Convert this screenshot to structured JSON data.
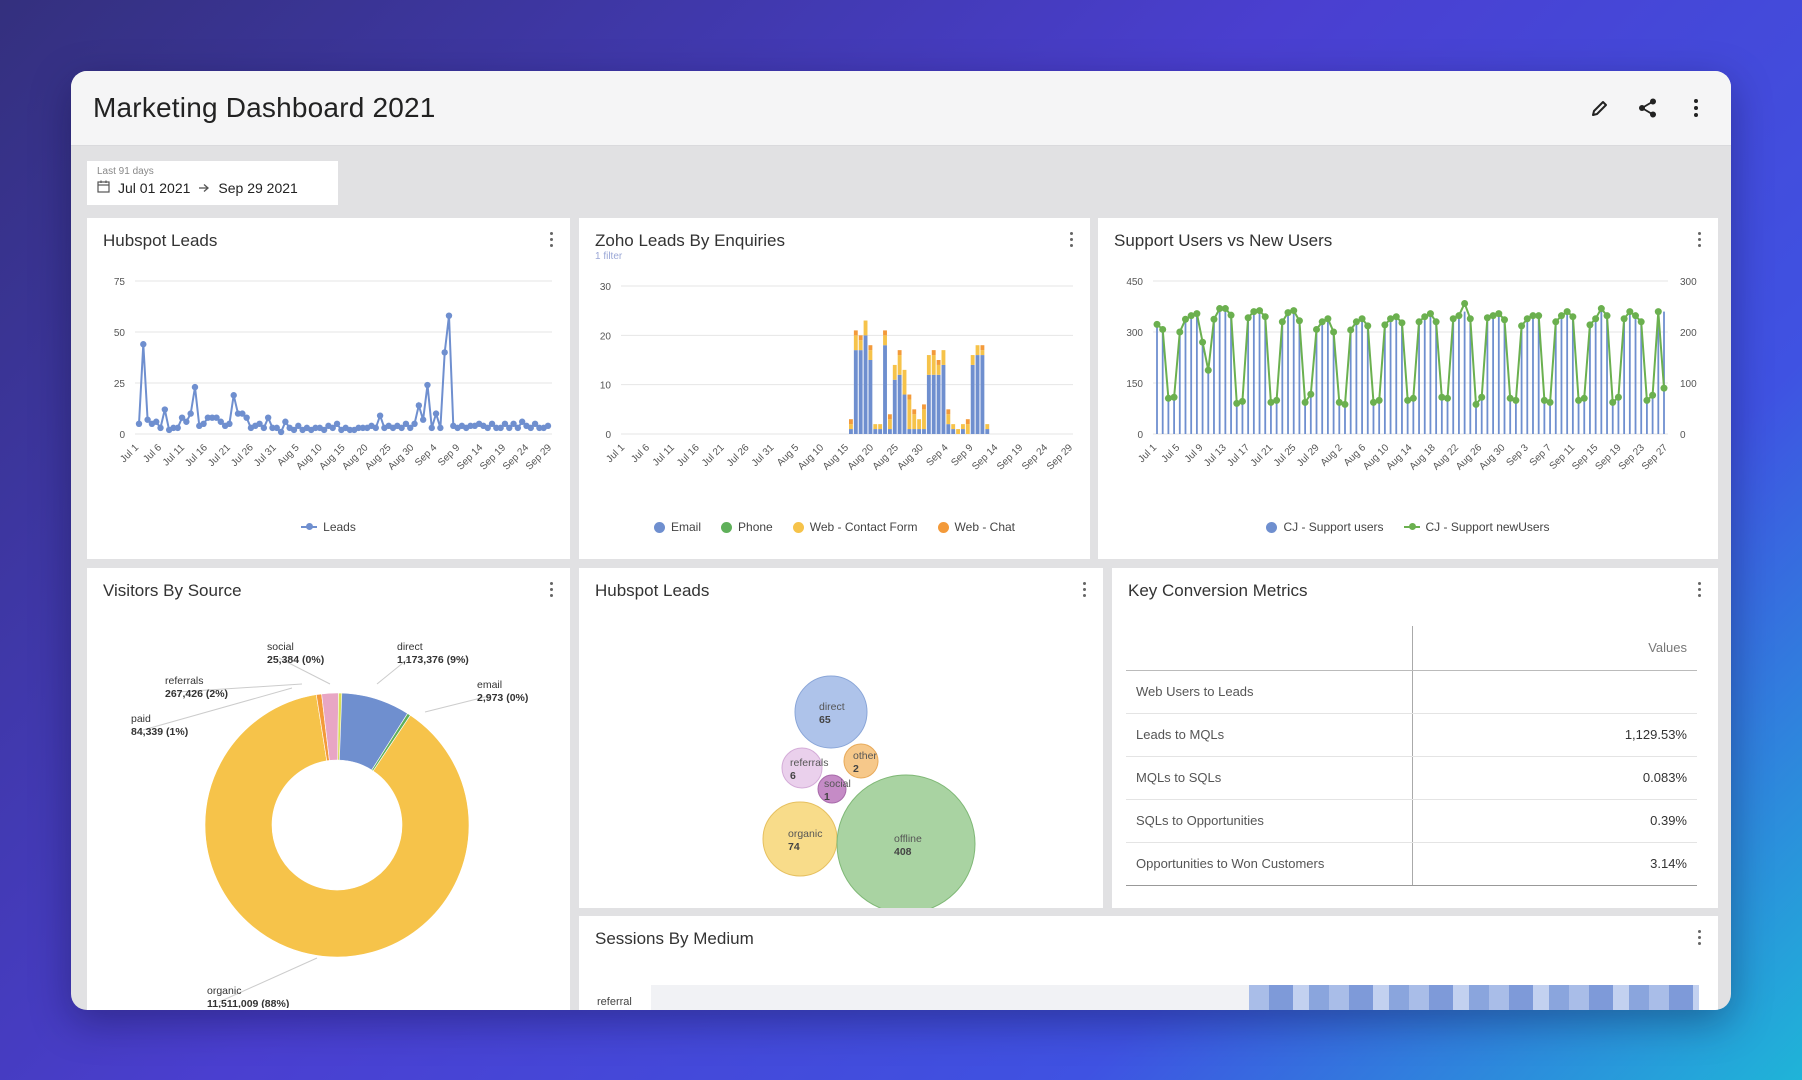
{
  "header": {
    "title": "Marketing Dashboard 2021",
    "icons": [
      "pencil-icon",
      "share-icon",
      "more-vertical-icon"
    ]
  },
  "date_filter": {
    "caption": "Last 91 days",
    "start": "Jul 01 2021",
    "end": "Sep 29 2021"
  },
  "hubspot_leads_line": {
    "title": "Hubspot Leads",
    "legend": "Leads",
    "chart_data": {
      "type": "line",
      "title": "Hubspot Leads",
      "yticks": [
        "0",
        "25",
        "50",
        "75"
      ],
      "ylim": [
        0,
        75
      ],
      "xticks": [
        "Jul 1",
        "Jul 6",
        "Jul 11",
        "Jul 16",
        "Jul 21",
        "Jul 26",
        "Jul 31",
        "Aug 5",
        "Aug 10",
        "Aug 15",
        "Aug 20",
        "Aug 25",
        "Aug 30",
        "Sep 4",
        "Sep 9",
        "Sep 14",
        "Sep 19",
        "Sep 24",
        "Sep 29"
      ],
      "series": [
        {
          "name": "Leads",
          "color": "#6f8fcf",
          "values": [
            5,
            44,
            7,
            5,
            6,
            3,
            12,
            2,
            3,
            3,
            8,
            6,
            10,
            23,
            4,
            5,
            8,
            8,
            8,
            6,
            4,
            5,
            19,
            10,
            10,
            8,
            3,
            4,
            5,
            3,
            8,
            3,
            3,
            1,
            6,
            3,
            2,
            4,
            2,
            3,
            2,
            3,
            3,
            2,
            4,
            3,
            5,
            2,
            3,
            2,
            2,
            3,
            3,
            3,
            4,
            3,
            9,
            3,
            4,
            3,
            4,
            3,
            5,
            3,
            5,
            14,
            7,
            24,
            3,
            10,
            3,
            40,
            58,
            4,
            3,
            4,
            3,
            4,
            4,
            5,
            4,
            3,
            5,
            3,
            3,
            5,
            3,
            5,
            3,
            6,
            4,
            3,
            5,
            3,
            3,
            4
          ]
        }
      ]
    }
  },
  "zoho_leads": {
    "title": "Zoho Leads By Enquiries",
    "subtitle": "1 filter",
    "legend": [
      "Email",
      "Phone",
      "Web - Contact Form",
      "Web - Chat"
    ],
    "chart_data": {
      "type": "bar",
      "title": "Zoho Leads By Enquiries",
      "yticks": [
        "0",
        "10",
        "20",
        "30"
      ],
      "ylim": [
        0,
        30
      ],
      "xticks": [
        "Jul 1",
        "Jul 6",
        "Jul 11",
        "Jul 16",
        "Jul 21",
        "Jul 26",
        "Jul 31",
        "Aug 5",
        "Aug 10",
        "Aug 15",
        "Aug 20",
        "Aug 25",
        "Aug 30",
        "Sep 4",
        "Sep 9",
        "Sep 14",
        "Sep 19",
        "Sep 24",
        "Sep 29"
      ],
      "colors": {
        "Email": "#6f8fcf",
        "Phone": "#5fb05a",
        "Web - Contact Form": "#f6c34a",
        "Web - Chat": "#f39a3a"
      },
      "series": [
        {
          "name": "Email",
          "values": [
            0,
            0,
            0,
            0,
            0,
            0,
            0,
            0,
            0,
            0,
            0,
            0,
            0,
            0,
            0,
            0,
            0,
            0,
            0,
            0,
            0,
            0,
            0,
            0,
            0,
            0,
            0,
            0,
            0,
            0,
            0,
            0,
            0,
            0,
            0,
            0,
            0,
            0,
            0,
            0,
            0,
            0,
            0,
            0,
            0,
            0,
            1,
            17,
            17,
            20,
            15,
            1,
            1,
            18,
            1,
            11,
            12,
            8,
            1,
            1,
            1,
            1,
            12,
            12,
            12,
            14,
            2,
            1,
            0,
            1,
            0,
            14,
            16,
            16,
            1,
            0,
            0,
            0,
            0,
            0,
            0,
            0,
            0,
            0,
            0,
            0,
            0,
            0,
            0,
            0,
            0,
            0
          ]
        },
        {
          "name": "Phone",
          "values": [
            0,
            0,
            0,
            0,
            0,
            0,
            0,
            0,
            0,
            0,
            0,
            0,
            0,
            0,
            0,
            0,
            0,
            0,
            0,
            0,
            0,
            0,
            0,
            0,
            0,
            0,
            0,
            0,
            0,
            0,
            0,
            0,
            0,
            0,
            0,
            0,
            0,
            0,
            0,
            0,
            0,
            0,
            0,
            0,
            0,
            0,
            0,
            0,
            0,
            0,
            0,
            0,
            0,
            0,
            0,
            0,
            0,
            0,
            0,
            0,
            0,
            0,
            0,
            0,
            0,
            0,
            0,
            0,
            0,
            0,
            0,
            0,
            0,
            0,
            0,
            0,
            0,
            0,
            0,
            0,
            0,
            0,
            0,
            0,
            0,
            0,
            0,
            0,
            0,
            0,
            0,
            0
          ]
        },
        {
          "name": "Web - Contact Form",
          "values": [
            0,
            0,
            0,
            0,
            0,
            0,
            0,
            0,
            0,
            0,
            0,
            0,
            0,
            0,
            0,
            0,
            0,
            0,
            0,
            0,
            0,
            0,
            0,
            0,
            0,
            0,
            0,
            0,
            0,
            0,
            0,
            0,
            0,
            0,
            0,
            0,
            0,
            0,
            0,
            0,
            0,
            0,
            0,
            0,
            0,
            0,
            1,
            3,
            2,
            3,
            2,
            1,
            1,
            2,
            2,
            3,
            4,
            5,
            6,
            3,
            2,
            4,
            4,
            4,
            2,
            3,
            2,
            1,
            1,
            1,
            2,
            2,
            2,
            1,
            1,
            0,
            0,
            0,
            0,
            0,
            0,
            0,
            0,
            0,
            0,
            0,
            0,
            0,
            0,
            0,
            0,
            0
          ]
        },
        {
          "name": "Web - Chat",
          "values": [
            0,
            0,
            0,
            0,
            0,
            0,
            0,
            0,
            0,
            0,
            0,
            0,
            0,
            0,
            0,
            0,
            0,
            0,
            0,
            0,
            0,
            0,
            0,
            0,
            0,
            0,
            0,
            0,
            0,
            0,
            0,
            0,
            0,
            0,
            0,
            0,
            0,
            0,
            0,
            0,
            0,
            0,
            0,
            0,
            0,
            0,
            1,
            1,
            1,
            0,
            1,
            0,
            0,
            1,
            1,
            0,
            1,
            0,
            1,
            1,
            0,
            1,
            0,
            1,
            1,
            0,
            1,
            0,
            0,
            0,
            1,
            0,
            0,
            1,
            0,
            0,
            0,
            0,
            0,
            0,
            0,
            0,
            0,
            0,
            0,
            0,
            0,
            0,
            0,
            0,
            0,
            0
          ]
        }
      ]
    }
  },
  "support_users": {
    "title": "Support Users vs New Users",
    "legend": [
      "CJ - Support users",
      "CJ - Support newUsers"
    ],
    "chart_data": {
      "type": "bar",
      "title": "Support Users vs New Users",
      "yticks_left": [
        "0",
        "150",
        "300",
        "450"
      ],
      "yticks_right": [
        "0",
        "100",
        "200",
        "300"
      ],
      "ylim_left": [
        0,
        450
      ],
      "ylim_right": [
        0,
        300
      ],
      "xticks": [
        "Jul 1",
        "Jul 5",
        "Jul 9",
        "Jul 13",
        "Jul 17",
        "Jul 21",
        "Jul 25",
        "Jul 29",
        "Aug 2",
        "Aug 6",
        "Aug 10",
        "Aug 14",
        "Aug 18",
        "Aug 22",
        "Aug 26",
        "Aug 30",
        "Sep 3",
        "Sep 7",
        "Sep 11",
        "Sep 15",
        "Sep 19",
        "Sep 23",
        "Sep 27"
      ],
      "series": [
        {
          "name": "CJ - Support users",
          "type": "bar",
          "axis": "left",
          "color": "#6f8fcf",
          "values": [
            320,
            305,
            100,
            105,
            300,
            340,
            350,
            360,
            270,
            190,
            340,
            370,
            365,
            350,
            90,
            100,
            340,
            365,
            365,
            350,
            95,
            100,
            330,
            350,
            360,
            330,
            95,
            120,
            310,
            330,
            340,
            300,
            95,
            90,
            310,
            330,
            340,
            320,
            95,
            100,
            320,
            340,
            345,
            330,
            100,
            105,
            330,
            345,
            355,
            330,
            110,
            105,
            340,
            350,
            360,
            340,
            90,
            110,
            340,
            350,
            355,
            340,
            105,
            100,
            320,
            340,
            350,
            350,
            100,
            95,
            330,
            350,
            360,
            345,
            100,
            105,
            320,
            340,
            370,
            350,
            95,
            110,
            340,
            360,
            350,
            330,
            100,
            115,
            350,
            360
          ]
        },
        {
          "name": "CJ - Support newUsers",
          "type": "line",
          "axis": "right",
          "color": "#6bb04f",
          "values": [
            215,
            205,
            70,
            72,
            200,
            225,
            232,
            236,
            180,
            125,
            225,
            246,
            246,
            233,
            60,
            64,
            228,
            240,
            242,
            230,
            62,
            66,
            220,
            238,
            242,
            222,
            62,
            78,
            205,
            220,
            226,
            200,
            62,
            58,
            204,
            220,
            226,
            212,
            62,
            66,
            214,
            226,
            230,
            218,
            66,
            70,
            220,
            230,
            236,
            220,
            72,
            70,
            226,
            232,
            256,
            226,
            58,
            72,
            228,
            232,
            236,
            224,
            70,
            66,
            212,
            226,
            232,
            232,
            66,
            62,
            220,
            232,
            240,
            230,
            66,
            70,
            214,
            226,
            246,
            232,
            62,
            72,
            226,
            240,
            232,
            220,
            66,
            76,
            240,
            90
          ]
        }
      ]
    }
  },
  "visitors_by_source": {
    "title": "Visitors By Source",
    "chart_data": {
      "type": "pie",
      "title": "Visitors By Source",
      "slices": [
        {
          "name": "direct",
          "value": 1173376,
          "label": "1,173,376 (9%)",
          "color": "#6f8fcf"
        },
        {
          "name": "email",
          "value": 2973,
          "label": "2,973 (0%)",
          "color": "#5fb05a"
        },
        {
          "name": "organic",
          "value": 11511009,
          "label": "11,511,009 (88%)",
          "color": "#f6c34a"
        },
        {
          "name": "paid",
          "value": 84339,
          "label": "84,339 (1%)",
          "color": "#f39a3a"
        },
        {
          "name": "referrals",
          "value": 267426,
          "label": "267,426 (2%)",
          "color": "#e8a6c4"
        },
        {
          "name": "social",
          "value": 25384,
          "label": "25,384 (0%)",
          "color": "#d8dd55"
        }
      ]
    }
  },
  "hubspot_leads_bubble": {
    "title": "Hubspot Leads",
    "bubbles": [
      {
        "name": "direct",
        "value": "65",
        "color": "#aec3ea",
        "stroke": "#8aa6d8"
      },
      {
        "name": "other",
        "value": "2",
        "color": "#f6c88a",
        "stroke": "#e8aa5a"
      },
      {
        "name": "referrals",
        "value": "6",
        "color": "#ead0ec",
        "stroke": "#d4acd8"
      },
      {
        "name": "social",
        "value": "1",
        "color": "#c58bc6",
        "stroke": "#a86aaa"
      },
      {
        "name": "organic",
        "value": "74",
        "color": "#f8dc8a",
        "stroke": "#e6c060"
      },
      {
        "name": "offline",
        "value": "408",
        "color": "#a9d3a2",
        "stroke": "#7fb876"
      }
    ]
  },
  "key_conversion": {
    "title": "Key Conversion Metrics",
    "column_header": "Values",
    "rows": [
      {
        "label": "Web Users to Leads",
        "value": ""
      },
      {
        "label": "Leads to MQLs",
        "value": "1,129.53%"
      },
      {
        "label": "MQLs to SQLs",
        "value": "0.083%"
      },
      {
        "label": "SQLs to Opportunities",
        "value": "0.39%"
      },
      {
        "label": "Opportunities to Won Customers",
        "value": "3.14%"
      }
    ]
  },
  "sessions_by_medium": {
    "title": "Sessions By Medium",
    "row_label": "referral"
  }
}
